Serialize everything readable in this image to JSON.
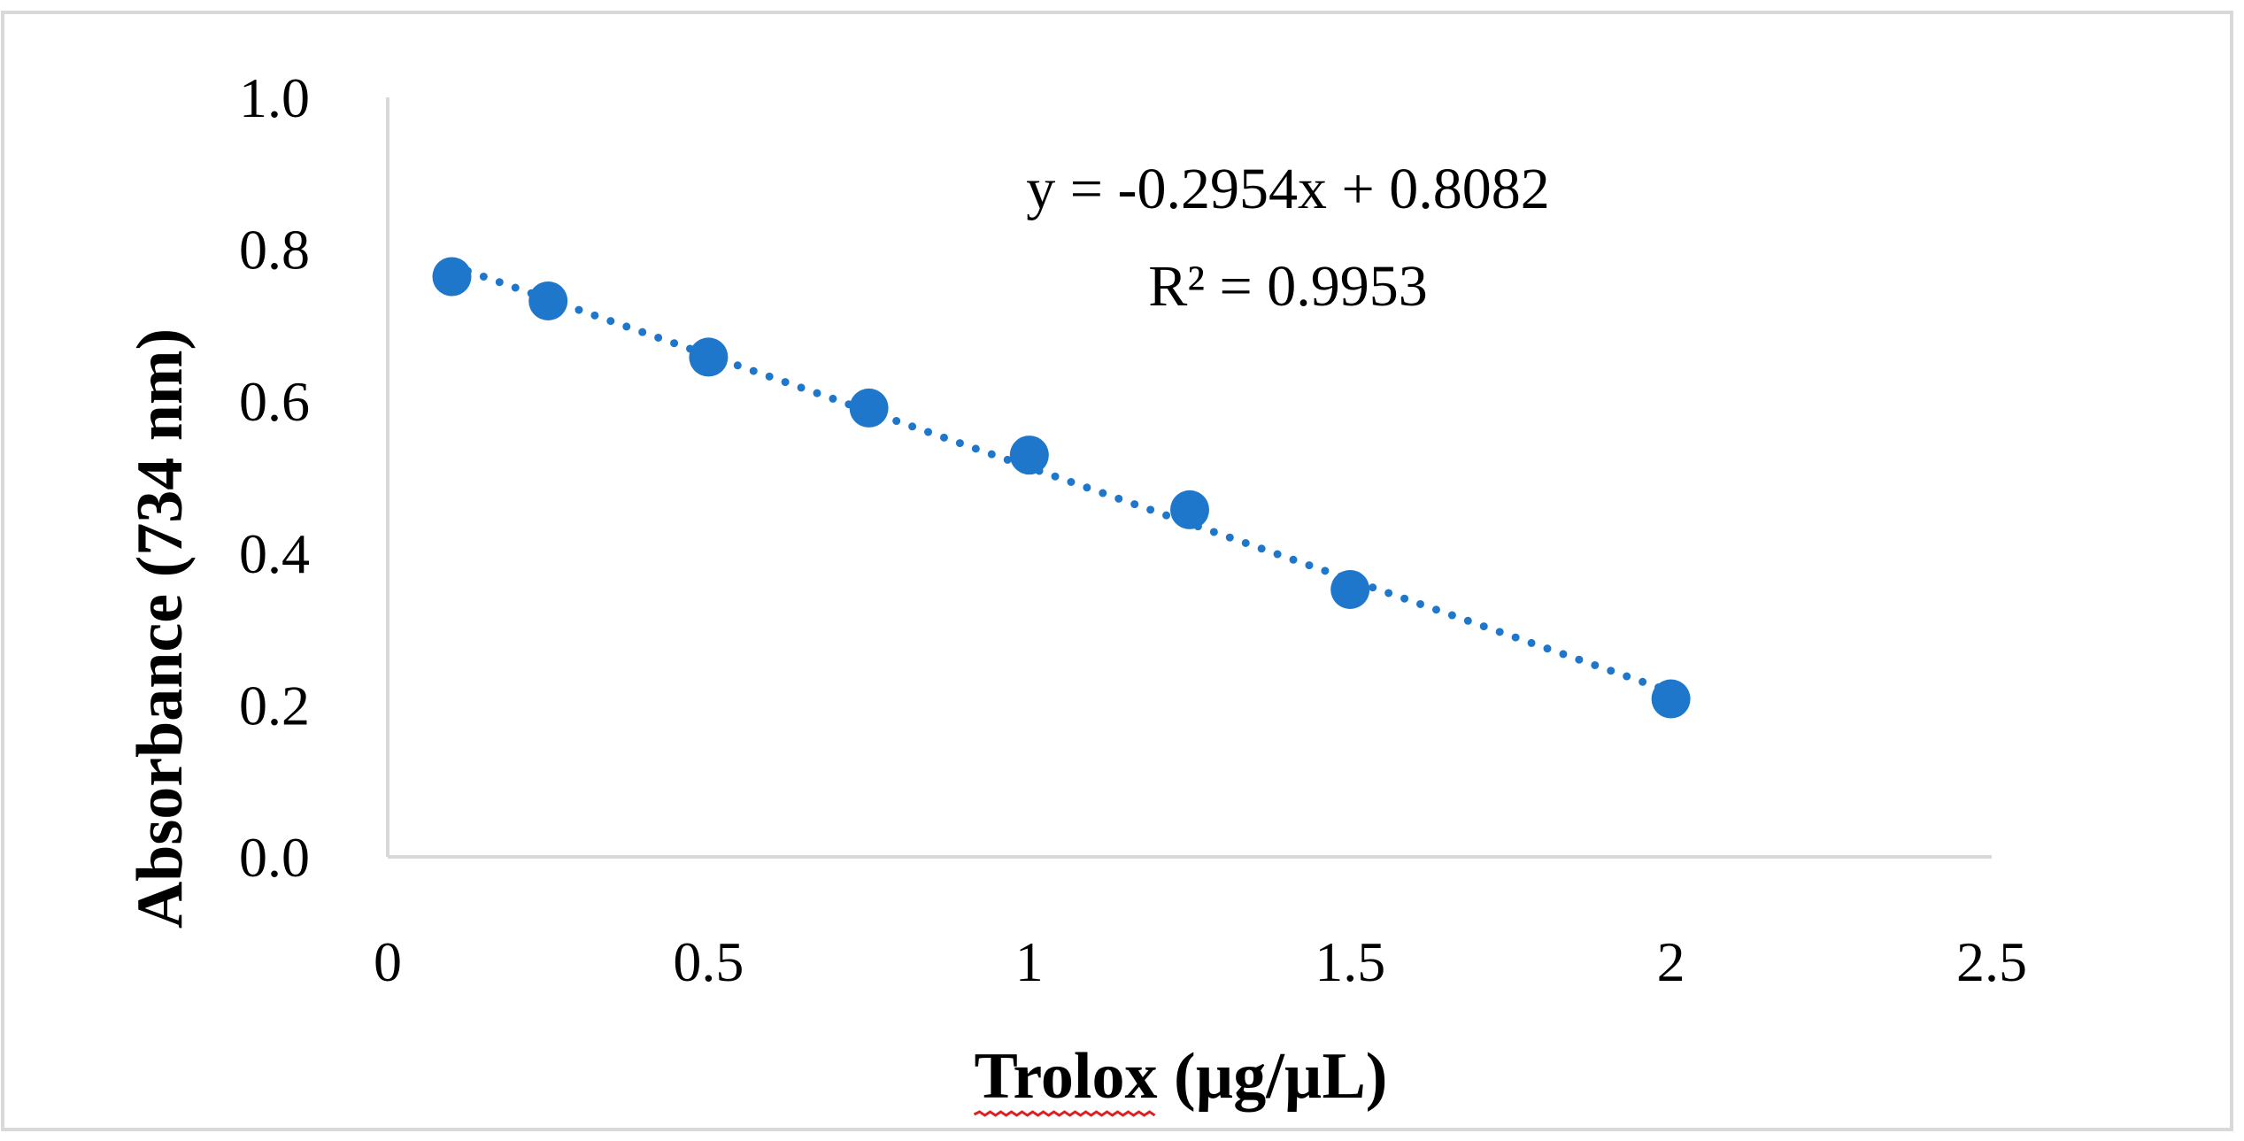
{
  "chart_data": {
    "type": "scatter",
    "xlabel_main": "Trolox",
    "xlabel_unit": " (µg/µL)",
    "ylabel": "Absorbance (734 nm)",
    "xlim": [
      0,
      2.5
    ],
    "ylim": [
      0,
      1.0
    ],
    "x_ticks": [
      "0",
      "0.5",
      "1",
      "1.5",
      "2",
      "2.5"
    ],
    "y_ticks": [
      "0.0",
      "0.2",
      "0.4",
      "0.6",
      "0.8",
      "1.0"
    ],
    "grid": false,
    "legend": "none",
    "series": [
      {
        "x": [
          0.1,
          0.25,
          0.5,
          0.75,
          1.0,
          1.25,
          1.5,
          2.0
        ],
        "y": [
          0.764,
          0.732,
          0.658,
          0.591,
          0.529,
          0.457,
          0.352,
          0.208
        ]
      }
    ],
    "trendline": {
      "type": "linear",
      "slope": -0.2954,
      "intercept": 0.8082,
      "x_range": [
        0.1,
        2.0
      ],
      "style": "dotted"
    },
    "annotations": {
      "equation": "y = -0.2954x + 0.8082",
      "r_squared": "R² = 0.9953"
    },
    "colors": {
      "marker": "#1F77CC",
      "trendline": "#1F77CC",
      "axis": "#D9D9D9",
      "frame": "#D9D9D9",
      "spellcheck_underline": "#E02020"
    }
  }
}
